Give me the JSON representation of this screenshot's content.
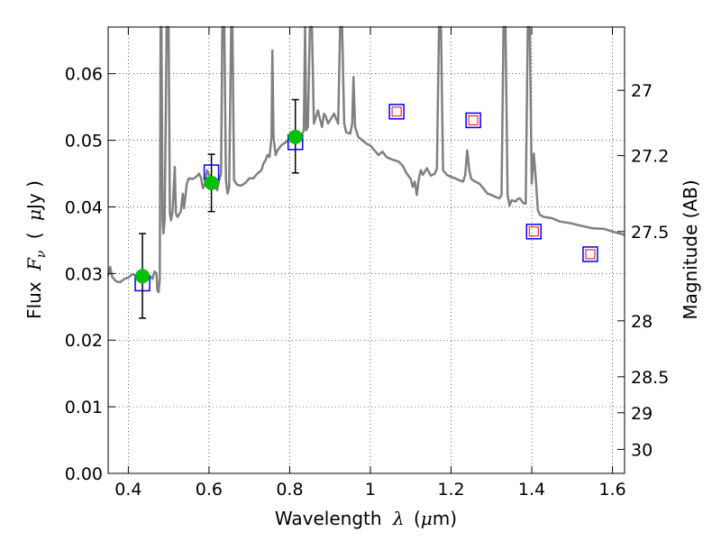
{
  "chart_data": {
    "type": "scatter",
    "title": "",
    "xlabel": "Wavelength",
    "xlabel_symbol": "λ",
    "xlabel_unit_open": "(",
    "xlabel_unit_mu": "μ",
    "xlabel_unit_rest": "m)",
    "ylabel": "Flux",
    "ylabel_symbol": "F",
    "ylabel_symbol_sub": "ν",
    "ylabel_unit_open": "(",
    "ylabel_unit_mu": "μ",
    "ylabel_unit_rest": "Jy )",
    "y2label": "Magnitude (AB)",
    "xlim": [
      0.35,
      1.63
    ],
    "ylim": [
      0.0,
      0.067
    ],
    "grid": true,
    "x_ticks": [
      {
        "value": 0.4,
        "label": "0.4"
      },
      {
        "value": 0.6,
        "label": "0.6"
      },
      {
        "value": 0.8,
        "label": "0.8"
      },
      {
        "value": 1.0,
        "label": "1"
      },
      {
        "value": 1.2,
        "label": "1.2"
      },
      {
        "value": 1.4,
        "label": "1.4"
      },
      {
        "value": 1.6,
        "label": "1.6"
      }
    ],
    "y_ticks": [
      {
        "value": 0.0,
        "label": "0.00"
      },
      {
        "value": 0.01,
        "label": "0.01"
      },
      {
        "value": 0.02,
        "label": "0.02"
      },
      {
        "value": 0.03,
        "label": "0.03"
      },
      {
        "value": 0.04,
        "label": "0.04"
      },
      {
        "value": 0.05,
        "label": "0.05"
      },
      {
        "value": 0.06,
        "label": "0.06"
      }
    ],
    "y2_ticks": [
      {
        "flux": 0.0575,
        "label": "27"
      },
      {
        "flux": 0.0477,
        "label": "27.2"
      },
      {
        "flux": 0.0363,
        "label": "27.5"
      },
      {
        "flux": 0.0229,
        "label": "28"
      },
      {
        "flux": 0.0145,
        "label": "28.5"
      },
      {
        "flux": 0.0091,
        "label": "29"
      },
      {
        "flux": 0.0036,
        "label": "30"
      }
    ],
    "model_spectrum": {
      "color": "#808080",
      "points": [
        [
          0.35,
          0.0297
        ],
        [
          0.355,
          0.031
        ],
        [
          0.36,
          0.0295
        ],
        [
          0.37,
          0.0288
        ],
        [
          0.38,
          0.0287
        ],
        [
          0.39,
          0.0292
        ],
        [
          0.4,
          0.0294
        ],
        [
          0.41,
          0.0299
        ],
        [
          0.42,
          0.0297
        ],
        [
          0.43,
          0.03
        ],
        [
          0.44,
          0.0296
        ],
        [
          0.45,
          0.0298
        ],
        [
          0.46,
          0.0292
        ],
        [
          0.465,
          0.0303
        ],
        [
          0.47,
          0.03
        ],
        [
          0.472,
          0.0275
        ],
        [
          0.475,
          0.0272
        ],
        [
          0.478,
          0.0292
        ],
        [
          0.48,
          0.067
        ],
        [
          0.482,
          0.067
        ],
        [
          0.485,
          0.038
        ],
        [
          0.487,
          0.036
        ],
        [
          0.49,
          0.038
        ],
        [
          0.495,
          0.067
        ],
        [
          0.5,
          0.067
        ],
        [
          0.503,
          0.039
        ],
        [
          0.506,
          0.038
        ],
        [
          0.51,
          0.0395
        ],
        [
          0.515,
          0.046
        ],
        [
          0.518,
          0.039
        ],
        [
          0.522,
          0.0385
        ],
        [
          0.53,
          0.0393
        ],
        [
          0.535,
          0.042
        ],
        [
          0.538,
          0.0398
        ],
        [
          0.545,
          0.0435
        ],
        [
          0.55,
          0.0443
        ],
        [
          0.56,
          0.0442
        ],
        [
          0.57,
          0.0446
        ],
        [
          0.575,
          0.045
        ],
        [
          0.58,
          0.0444
        ],
        [
          0.585,
          0.0428
        ],
        [
          0.59,
          0.0435
        ],
        [
          0.595,
          0.0455
        ],
        [
          0.6,
          0.0448
        ],
        [
          0.61,
          0.0443
        ],
        [
          0.615,
          0.0436
        ],
        [
          0.62,
          0.0425
        ],
        [
          0.625,
          0.044
        ],
        [
          0.63,
          0.045
        ],
        [
          0.633,
          0.067
        ],
        [
          0.638,
          0.067
        ],
        [
          0.642,
          0.044
        ],
        [
          0.646,
          0.042
        ],
        [
          0.65,
          0.043
        ],
        [
          0.655,
          0.067
        ],
        [
          0.658,
          0.067
        ],
        [
          0.662,
          0.044
        ],
        [
          0.67,
          0.0433
        ],
        [
          0.68,
          0.0432
        ],
        [
          0.69,
          0.0436
        ],
        [
          0.7,
          0.0443
        ],
        [
          0.71,
          0.0443
        ],
        [
          0.72,
          0.045
        ],
        [
          0.73,
          0.0455
        ],
        [
          0.735,
          0.0465
        ],
        [
          0.74,
          0.047
        ],
        [
          0.745,
          0.0478
        ],
        [
          0.75,
          0.0475
        ],
        [
          0.755,
          0.0505
        ],
        [
          0.757,
          0.0635
        ],
        [
          0.76,
          0.0505
        ],
        [
          0.765,
          0.0478
        ],
        [
          0.77,
          0.0485
        ],
        [
          0.78,
          0.0493
        ],
        [
          0.79,
          0.0497
        ],
        [
          0.8,
          0.0502
        ],
        [
          0.81,
          0.0505
        ],
        [
          0.82,
          0.0507
        ],
        [
          0.83,
          0.0508
        ],
        [
          0.835,
          0.0515
        ],
        [
          0.838,
          0.067
        ],
        [
          0.841,
          0.0515
        ],
        [
          0.845,
          0.052
        ],
        [
          0.85,
          0.067
        ],
        [
          0.855,
          0.067
        ],
        [
          0.86,
          0.0525
        ],
        [
          0.87,
          0.0545
        ],
        [
          0.875,
          0.0532
        ],
        [
          0.88,
          0.052
        ],
        [
          0.885,
          0.054
        ],
        [
          0.89,
          0.0535
        ],
        [
          0.895,
          0.0525
        ],
        [
          0.9,
          0.053
        ],
        [
          0.91,
          0.054
        ],
        [
          0.92,
          0.0525
        ],
        [
          0.925,
          0.067
        ],
        [
          0.93,
          0.067
        ],
        [
          0.935,
          0.0525
        ],
        [
          0.94,
          0.0512
        ],
        [
          0.95,
          0.051
        ],
        [
          0.955,
          0.0525
        ],
        [
          0.958,
          0.0595
        ],
        [
          0.962,
          0.052
        ],
        [
          0.97,
          0.0505
        ],
        [
          0.98,
          0.05
        ],
        [
          0.99,
          0.0495
        ],
        [
          1.0,
          0.0492
        ],
        [
          1.01,
          0.0485
        ],
        [
          1.02,
          0.0478
        ],
        [
          1.03,
          0.0483
        ],
        [
          1.04,
          0.0475
        ],
        [
          1.05,
          0.0472
        ],
        [
          1.06,
          0.047
        ],
        [
          1.07,
          0.0468
        ],
        [
          1.08,
          0.0462
        ],
        [
          1.09,
          0.045
        ],
        [
          1.1,
          0.0442
        ],
        [
          1.105,
          0.043
        ],
        [
          1.11,
          0.0438
        ],
        [
          1.115,
          0.0418
        ],
        [
          1.12,
          0.0442
        ],
        [
          1.125,
          0.0455
        ],
        [
          1.13,
          0.0448
        ],
        [
          1.14,
          0.0458
        ],
        [
          1.15,
          0.0447
        ],
        [
          1.16,
          0.045
        ],
        [
          1.165,
          0.0458
        ],
        [
          1.17,
          0.067
        ],
        [
          1.175,
          0.067
        ],
        [
          1.18,
          0.0455
        ],
        [
          1.19,
          0.0448
        ],
        [
          1.2,
          0.0445
        ],
        [
          1.21,
          0.0443
        ],
        [
          1.22,
          0.044
        ],
        [
          1.23,
          0.0438
        ],
        [
          1.235,
          0.0448
        ],
        [
          1.24,
          0.0485
        ],
        [
          1.245,
          0.0455
        ],
        [
          1.25,
          0.0442
        ],
        [
          1.26,
          0.0438
        ],
        [
          1.27,
          0.0435
        ],
        [
          1.28,
          0.0428
        ],
        [
          1.29,
          0.042
        ],
        [
          1.3,
          0.0418
        ],
        [
          1.31,
          0.0415
        ],
        [
          1.32,
          0.0413
        ],
        [
          1.325,
          0.0418
        ],
        [
          1.33,
          0.067
        ],
        [
          1.335,
          0.067
        ],
        [
          1.34,
          0.0418
        ],
        [
          1.345,
          0.0402
        ],
        [
          1.35,
          0.041
        ],
        [
          1.36,
          0.0408
        ],
        [
          1.365,
          0.0412
        ],
        [
          1.37,
          0.0413
        ],
        [
          1.38,
          0.0405
        ],
        [
          1.385,
          0.0405
        ],
        [
          1.39,
          0.067
        ],
        [
          1.395,
          0.067
        ],
        [
          1.4,
          0.0435
        ],
        [
          1.405,
          0.048
        ],
        [
          1.41,
          0.0442
        ],
        [
          1.415,
          0.0395
        ],
        [
          1.42,
          0.0388
        ],
        [
          1.43,
          0.0385
        ],
        [
          1.45,
          0.0383
        ],
        [
          1.47,
          0.0378
        ],
        [
          1.5,
          0.0375
        ],
        [
          1.52,
          0.0372
        ],
        [
          1.55,
          0.0368
        ],
        [
          1.58,
          0.0367
        ],
        [
          1.6,
          0.0363
        ],
        [
          1.63,
          0.0358
        ]
      ]
    },
    "observed": {
      "color": "#00c000",
      "points": [
        {
          "x": 0.435,
          "y": 0.0296,
          "yerr_low": 0.0233,
          "yerr_high": 0.036
        },
        {
          "x": 0.606,
          "y": 0.0436,
          "yerr_low": 0.0393,
          "yerr_high": 0.0479
        },
        {
          "x": 0.814,
          "y": 0.0505,
          "yerr_low": 0.0451,
          "yerr_high": 0.0561
        }
      ]
    },
    "model_boxes": {
      "outer_color": "#0000ff",
      "inner_color": "#ff0000",
      "points": [
        {
          "x": 0.435,
          "y": 0.0285,
          "inner": false
        },
        {
          "x": 0.606,
          "y": 0.0452,
          "inner": false
        },
        {
          "x": 0.814,
          "y": 0.0497,
          "inner": false
        },
        {
          "x": 1.065,
          "y": 0.0543,
          "inner": true
        },
        {
          "x": 1.255,
          "y": 0.053,
          "inner": true
        },
        {
          "x": 1.405,
          "y": 0.0363,
          "inner": true
        },
        {
          "x": 1.545,
          "y": 0.0329,
          "inner": true
        }
      ]
    }
  }
}
